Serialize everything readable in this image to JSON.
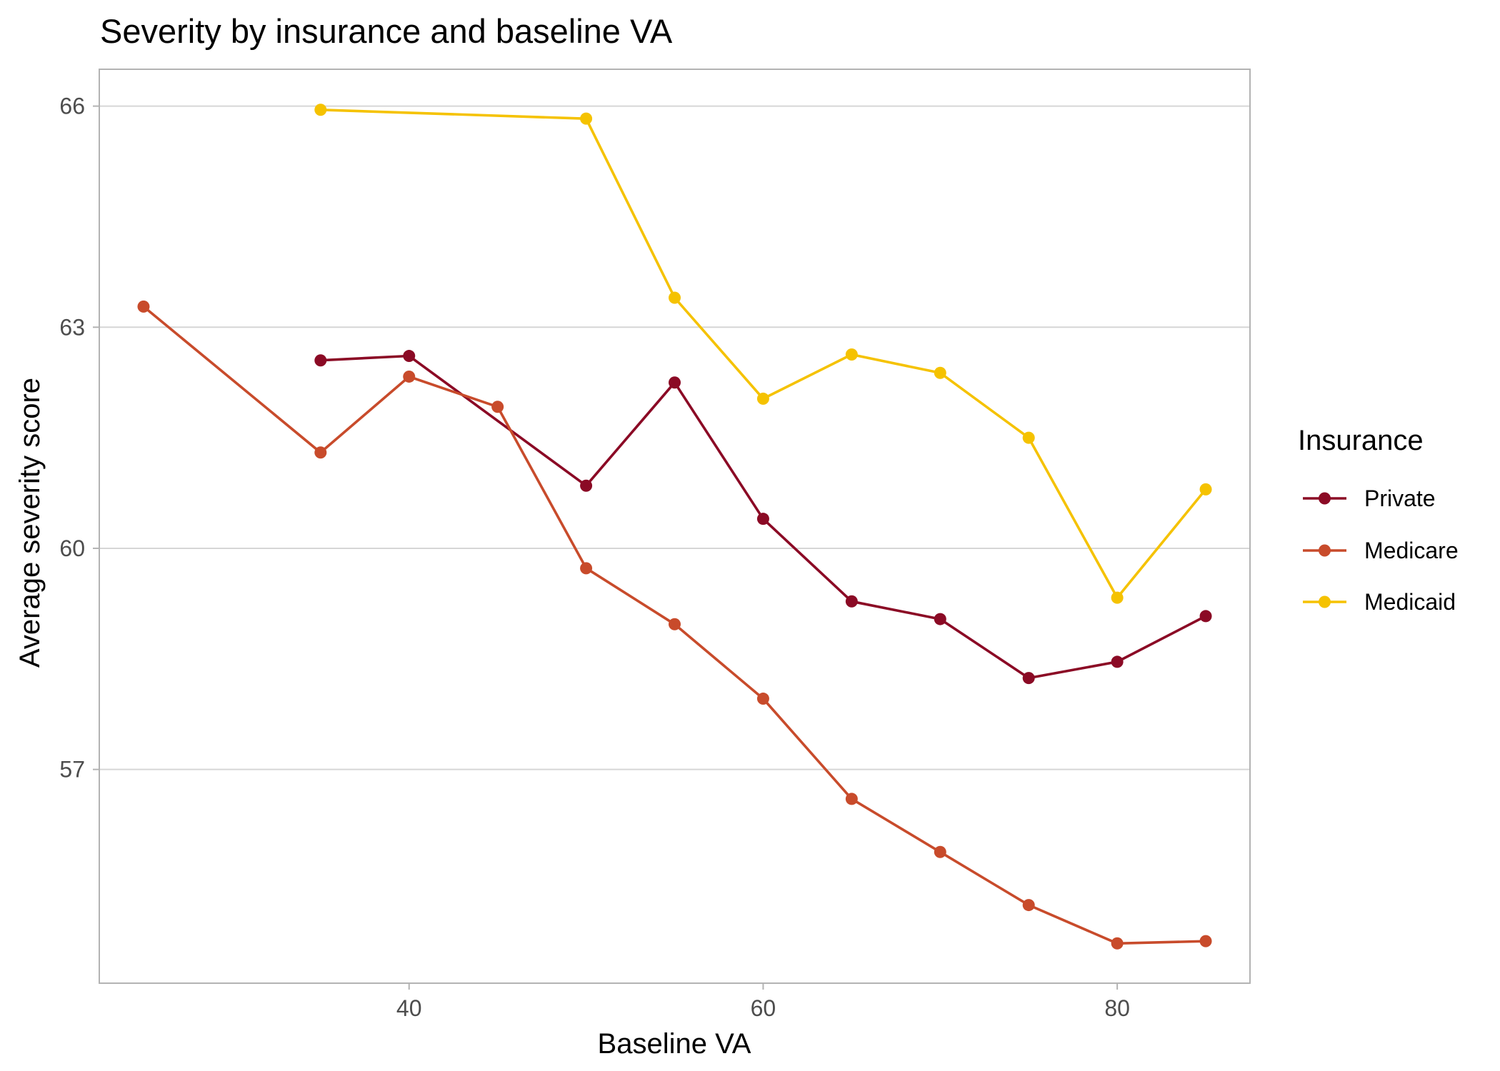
{
  "chart_data": {
    "type": "line",
    "title": "Severity by insurance and baseline VA",
    "xlabel": "Baseline VA",
    "ylabel": "Average severity score",
    "xlim": [
      22.5,
      87.5
    ],
    "ylim": [
      54.1,
      66.5
    ],
    "xticks": [
      40,
      60,
      80
    ],
    "yticks": [
      57,
      60,
      63,
      66
    ],
    "grid": "horizontal-major",
    "legend_title": "Insurance",
    "legend_position": "right",
    "series": [
      {
        "name": "Private",
        "color": "#8B0A25",
        "x": [
          35,
          40,
          50,
          55,
          60,
          65,
          70,
          75,
          80,
          85
        ],
        "values": [
          62.55,
          62.61,
          60.85,
          62.25,
          60.4,
          59.28,
          59.04,
          58.24,
          58.46,
          59.08
        ]
      },
      {
        "name": "Medicare",
        "color": "#C84B2B",
        "x": [
          25,
          35,
          40,
          45,
          50,
          55,
          60,
          65,
          70,
          75,
          80,
          85
        ],
        "values": [
          63.28,
          61.3,
          62.33,
          61.92,
          59.73,
          58.97,
          57.96,
          56.6,
          55.88,
          55.16,
          54.64,
          54.67
        ]
      },
      {
        "name": "Medicaid",
        "color": "#F5C200",
        "x": [
          35,
          50,
          55,
          60,
          65,
          70,
          75,
          80,
          85
        ],
        "values": [
          65.95,
          65.83,
          63.4,
          62.03,
          62.63,
          62.38,
          61.5,
          59.33,
          60.8
        ]
      }
    ]
  }
}
